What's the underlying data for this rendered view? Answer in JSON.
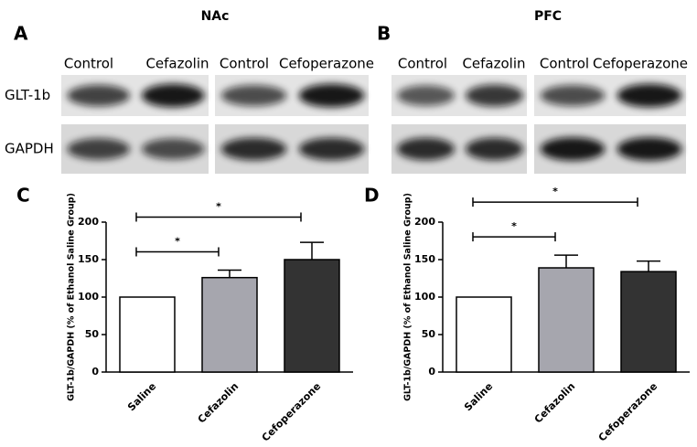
{
  "blots": [
    {
      "label": "A",
      "title": "NAc",
      "lanes": [
        "Control",
        "Cefazolin",
        "Control",
        "Cefoperazone"
      ],
      "rows": [
        "GLT-1b",
        "GAPDH"
      ]
    },
    {
      "label": "B",
      "title": "PFC",
      "lanes": [
        "Control",
        "Cefazolin",
        "Control",
        "Cefoperazone"
      ]
    }
  ],
  "chart_data": [
    {
      "type": "bar",
      "label": "C",
      "ylabel": "GLT-1b/GAPDH (% of Ethanol Saline Group)",
      "categories": [
        "Saline",
        "Cefazolin",
        "Cefoperazone"
      ],
      "values": [
        100,
        126,
        150
      ],
      "errors": [
        0,
        10,
        23
      ],
      "colors": [
        "#ffffff",
        "#a6a6ae",
        "#333333"
      ],
      "ylim": [
        0,
        200
      ],
      "yticks": [
        0,
        50,
        100,
        150,
        200
      ],
      "annotations": [
        "*",
        "*"
      ]
    },
    {
      "type": "bar",
      "label": "D",
      "ylabel": "GLT-1b/GAPDH (% of Ethanol Saline Group)",
      "categories": [
        "Saline",
        "Cefazolin",
        "Cefoperazone"
      ],
      "values": [
        100,
        139,
        134
      ],
      "errors": [
        0,
        17,
        14
      ],
      "colors": [
        "#ffffff",
        "#a6a6ae",
        "#333333"
      ],
      "ylim": [
        0,
        200
      ],
      "yticks": [
        0,
        50,
        100,
        150,
        200
      ],
      "annotations": [
        "*",
        "*"
      ]
    }
  ]
}
